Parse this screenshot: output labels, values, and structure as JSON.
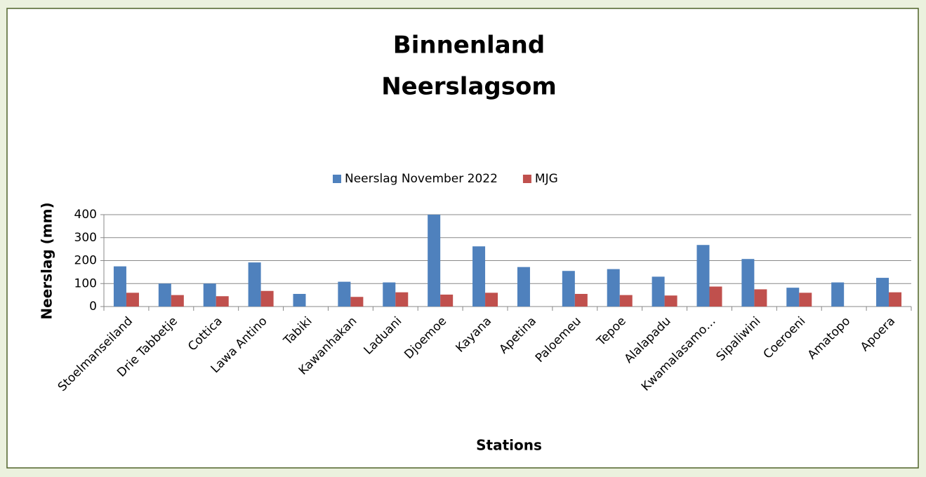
{
  "chart_data": {
    "type": "bar",
    "title": [
      "Binnenland",
      "Neerslagsom"
    ],
    "x_label": "Stations",
    "y_label": "Neerslag (mm)",
    "categories": [
      "Stoelmanseiland",
      "Drie Tabbetje",
      "Cottica",
      "Lawa Antino",
      "Tabiki",
      "Kawanhakan",
      "Laduani",
      "Djoemoe",
      "Kayana",
      "Apetina",
      "Paloemeu",
      "Tepoe",
      "Alalapadu",
      "Kwamalasamo…",
      "Sipaliwini",
      "Coeroeni",
      "Amatopo",
      "Apoera"
    ],
    "series": [
      {
        "name": "Neerslag November 2022",
        "color": "#4f81bd",
        "values": [
          175,
          100,
          100,
          192,
          55,
          108,
          105,
          400,
          262,
          172,
          155,
          163,
          130,
          268,
          207,
          82,
          105,
          125
        ]
      },
      {
        "name": "MJG",
        "color": "#c0504d",
        "values": [
          60,
          50,
          45,
          68,
          null,
          42,
          62,
          52,
          60,
          null,
          55,
          50,
          48,
          87,
          75,
          60,
          null,
          62
        ]
      }
    ],
    "ylim": [
      0,
      400
    ],
    "yticks": [
      0,
      100,
      200,
      300,
      400
    ],
    "grid": true,
    "legend": "top"
  }
}
